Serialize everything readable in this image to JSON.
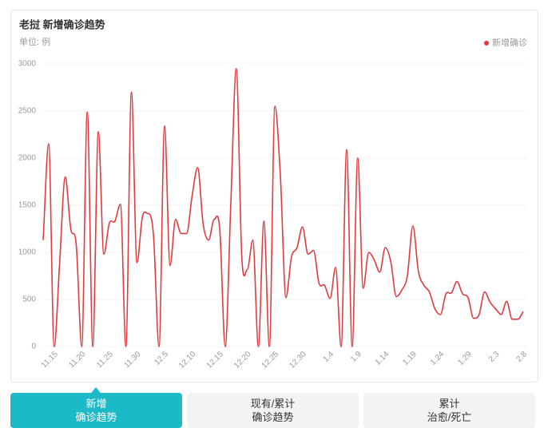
{
  "chart_data": {
    "type": "line",
    "title": "老挝 新增确诊趋势",
    "subtitle": "单位: 例",
    "categories": [
      null,
      null,
      "11.15",
      null,
      null,
      null,
      null,
      "11.20",
      null,
      null,
      null,
      null,
      "11.25",
      null,
      null,
      null,
      null,
      "11.30",
      null,
      null,
      null,
      null,
      "12.5",
      null,
      null,
      null,
      null,
      "12.10",
      null,
      null,
      null,
      null,
      "12.15",
      null,
      null,
      null,
      null,
      "12.20",
      null,
      null,
      null,
      null,
      "12.25",
      null,
      null,
      null,
      null,
      "12.30",
      null,
      null,
      null,
      null,
      "1.4",
      null,
      null,
      null,
      null,
      "1.9",
      null,
      null,
      null,
      null,
      "1.14",
      null,
      null,
      null,
      null,
      "1.19",
      null,
      null,
      null,
      null,
      "1.24",
      null,
      null,
      null,
      null,
      "1.29",
      null,
      null,
      null,
      null,
      "2.3",
      null,
      null,
      null,
      null,
      "2.8"
    ],
    "series": [
      {
        "name": "新增确诊",
        "color": "#e03a3e",
        "values": [
          1130,
          2150,
          0,
          900,
          1800,
          1250,
          1080,
          0,
          2490,
          0,
          2280,
          980,
          1310,
          1330,
          1510,
          0,
          2700,
          890,
          1380,
          1410,
          1180,
          0,
          2340,
          860,
          1350,
          1200,
          1200,
          1600,
          1900,
          1300,
          1130,
          1350,
          1250,
          0,
          1500,
          2950,
          950,
          820,
          1130,
          0,
          1330,
          0,
          2550,
          1800,
          520,
          950,
          1050,
          1270,
          980,
          1020,
          670,
          650,
          510,
          840,
          0,
          2090,
          0,
          2000,
          620,
          1000,
          920,
          790,
          1050,
          900,
          530,
          600,
          750,
          1280,
          800,
          650,
          580,
          400,
          340,
          560,
          570,
          690,
          560,
          520,
          300,
          340,
          580,
          470,
          400,
          340,
          480,
          290,
          290,
          370
        ]
      }
    ],
    "ylim": [
      0,
      3000
    ],
    "yticks": [
      0,
      500,
      1000,
      1500,
      2000,
      2500,
      3000
    ],
    "grid": true,
    "legend": "top-right"
  },
  "tabs": [
    {
      "lines": [
        "新增",
        "确诊趋势"
      ],
      "active": true
    },
    {
      "lines": [
        "现有/累计",
        "确诊趋势"
      ],
      "active": false
    },
    {
      "lines": [
        "累计",
        "治愈/死亡"
      ],
      "active": false
    }
  ]
}
